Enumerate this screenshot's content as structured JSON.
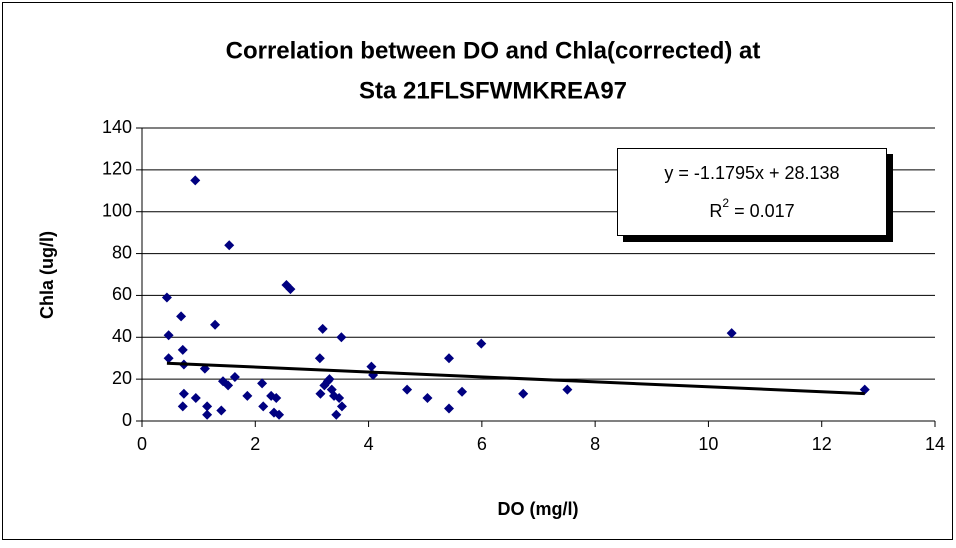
{
  "chart_data": {
    "type": "scatter",
    "title": [
      "Correlation between DO and Chla(corrected) at",
      "Sta 21FLSFWMKREA97"
    ],
    "x_label": "DO (mg/l)",
    "y_label": "Chla (ug/l)",
    "color": "#000080",
    "x": [
      0.44,
      0.47,
      0.47,
      0.69,
      0.72,
      0.74,
      0.74,
      0.72,
      0.94,
      0.95,
      1.11,
      1.15,
      1.15,
      1.29,
      1.4,
      1.43,
      1.52,
      1.54,
      1.64,
      1.86,
      2.12,
      2.14,
      2.28,
      2.33,
      2.37,
      2.42,
      2.55,
      2.62,
      3.14,
      3.15,
      3.19,
      3.22,
      3.28,
      3.31,
      3.35,
      3.39,
      3.43,
      3.48,
      3.52,
      3.53,
      4.05,
      4.08,
      4.68,
      5.04,
      5.42,
      5.42,
      5.65,
      5.99,
      6.73,
      7.51,
      10.41,
      12.76
    ],
    "values": [
      59,
      41,
      30,
      50,
      34,
      27,
      13,
      7,
      115,
      11,
      25,
      7,
      3,
      46,
      5,
      19,
      17,
      84,
      21,
      12,
      18,
      7,
      12,
      4,
      11,
      3,
      65,
      63,
      30,
      13,
      44,
      17,
      19,
      20,
      15,
      12,
      3,
      11,
      40,
      7,
      26,
      22,
      15,
      11,
      30,
      6,
      14,
      37,
      13,
      15,
      42,
      15
    ],
    "xlim": [
      0,
      14
    ],
    "xticks": [
      0,
      2,
      4,
      6,
      8,
      10,
      12,
      14
    ],
    "ylim": [
      0,
      140
    ],
    "yticks": [
      0,
      20,
      40,
      60,
      80,
      100,
      120,
      140
    ],
    "grid": true,
    "trendline": {
      "slope": -1.1795,
      "intercept": 28.138,
      "equation": "y = -1.1795x + 28.138",
      "r2_symbol": "R",
      "r2_power": "2",
      "r2_value": " = 0.017"
    }
  }
}
